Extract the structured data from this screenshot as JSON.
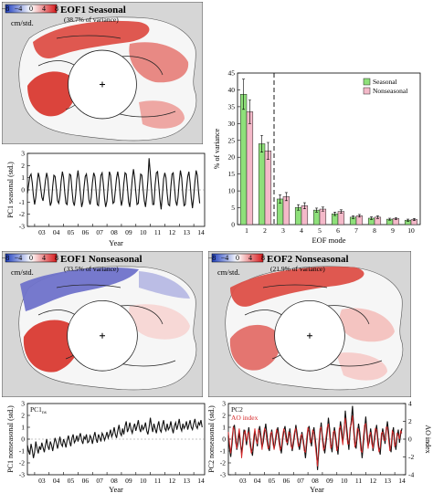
{
  "maps": [
    {
      "id": "map1",
      "title": "EOF1 Seasonal",
      "subtitle": "(38.7% of variance)",
      "unit_label": "cm/std.",
      "colorbar_ticks": [
        "−8",
        "−4",
        "0",
        "4",
        "8"
      ],
      "pattern": "seasonal"
    },
    {
      "id": "map2",
      "title": "EOF1 Nonseasonal",
      "subtitle": "(33.5% of variance)",
      "unit_label": "cm/std.",
      "colorbar_ticks": [
        "−8",
        "−4",
        "0",
        "4",
        "8"
      ],
      "pattern": "nonseasonal1"
    },
    {
      "id": "map3",
      "title": "EOF2 Nonseasonal",
      "subtitle": "(21.9% of variance)",
      "unit_label": "cm/std.",
      "colorbar_ticks": [
        "−8",
        "−4",
        "0",
        "4",
        "8"
      ],
      "pattern": "nonseasonal2"
    }
  ],
  "colors": {
    "seasonal": "#8ee07a",
    "nonseasonal": "#f4b9c9",
    "ao": "#d62728",
    "pc": "#111111",
    "land": "#d6d6d6"
  },
  "chart_data": [
    {
      "id": "pc1-seasonal",
      "type": "line",
      "title": "",
      "xlabel": "Year",
      "ylabel": "PC1 seasonal (std.)",
      "x_ticks": [
        "03",
        "04",
        "05",
        "06",
        "07",
        "08",
        "09",
        "10",
        "11",
        "12",
        "13",
        "14"
      ],
      "xlim": [
        2002.5,
        2014.75
      ],
      "ylim": [
        -3,
        3
      ],
      "y_ticks": [
        -3,
        -2,
        -1,
        0,
        1,
        2,
        3
      ],
      "series": [
        {
          "name": "",
          "start": 2002.5,
          "step": 0.0833,
          "values": [
            -0.3,
            0.4,
            1.1,
            1.3,
            0.6,
            -0.5,
            -1.2,
            -0.6,
            0.5,
            1.4,
            1.0,
            0.2,
            -0.6,
            -0.9,
            -0.1,
            0.8,
            1.4,
            0.9,
            -0.4,
            -1.3,
            -1.0,
            0.3,
            1.2,
            1.1,
            0.1,
            -0.9,
            -1.1,
            -0.5,
            0.7,
            1.5,
            1.0,
            -0.2,
            -1.1,
            -1.2,
            0.2,
            1.3,
            1.2,
            0.0,
            -1.0,
            -1.3,
            -0.4,
            0.9,
            1.6,
            0.8,
            -0.3,
            -1.4,
            -1.0,
            0.2,
            1.1,
            1.3,
            0.4,
            -0.8,
            -1.2,
            -0.6,
            0.6,
            1.4,
            1.1,
            -0.1,
            -1.2,
            -1.3,
            0.1,
            1.2,
            1.4,
            0.5,
            -0.7,
            -1.4,
            -0.9,
            0.4,
            1.5,
            1.2,
            0.0,
            -1.1,
            -1.0,
            0.0,
            1.0,
            1.5,
            0.8,
            -0.5,
            -1.3,
            -0.8,
            0.5,
            1.4,
            1.3,
            0.2,
            -1.0,
            -1.4,
            -0.3,
            0.9,
            1.7,
            1.0,
            -0.2,
            -1.2,
            -1.1,
            0.3,
            1.3,
            1.2,
            0.1,
            -0.9,
            -1.4,
            -0.5,
            0.8,
            2.6,
            1.3,
            0.0,
            -1.2,
            -1.2,
            0.4,
            1.4,
            1.5,
            0.4,
            -0.8,
            -1.6,
            -0.4,
            0.9,
            1.4,
            1.0,
            -0.3,
            -1.2,
            -1.3,
            0.2,
            1.3,
            1.4,
            0.3,
            -0.9,
            -1.3,
            -0.6,
            0.7,
            1.6,
            1.0,
            -0.4,
            -1.3,
            -1.2,
            0.1,
            1.1,
            1.5,
            0.6,
            -0.7,
            -1.5,
            -0.6,
            0.7,
            1.6,
            1.2,
            -0.1,
            -1.1
          ]
        }
      ]
    },
    {
      "id": "eof-variance",
      "type": "bar",
      "title": "",
      "xlabel": "EOF mode",
      "ylabel": "% of variance",
      "categories": [
        "1",
        "2",
        "3",
        "4",
        "5",
        "6",
        "7",
        "8",
        "9",
        "10"
      ],
      "ylim": [
        0,
        45
      ],
      "y_ticks": [
        0,
        5,
        10,
        15,
        20,
        25,
        30,
        35,
        40,
        45
      ],
      "legend_position": "top-right",
      "series": [
        {
          "name": "Seasonal",
          "values": [
            38.7,
            24.0,
            7.6,
            5.1,
            4.3,
            3.2,
            2.2,
            1.9,
            1.6,
            1.3
          ],
          "errors": [
            4.5,
            2.5,
            1.2,
            0.8,
            0.6,
            0.5,
            0.4,
            0.4,
            0.3,
            0.3
          ]
        },
        {
          "name": "Nonseasonal",
          "values": [
            33.5,
            21.9,
            8.3,
            5.6,
            4.6,
            3.9,
            2.6,
            2.2,
            1.8,
            1.5
          ],
          "errors": [
            3.5,
            2.5,
            1.2,
            0.9,
            0.6,
            0.5,
            0.4,
            0.4,
            0.3,
            0.3
          ]
        }
      ]
    },
    {
      "id": "pc1-nonseasonal",
      "type": "line",
      "title": "",
      "xlabel": "Year",
      "ylabel": "PC1 nonseasonal (std.)",
      "x_ticks": [
        "03",
        "04",
        "05",
        "06",
        "07",
        "08",
        "09",
        "10",
        "11",
        "12",
        "13",
        "14"
      ],
      "xlim": [
        2002.5,
        2014.75
      ],
      "ylim": [
        -3,
        3
      ],
      "y_ticks": [
        -3,
        -2,
        -1,
        0,
        1,
        2,
        3
      ],
      "legend_position": "top-left",
      "series": [
        {
          "name": "PC1",
          "legend_sub": "ns",
          "start": 2002.5,
          "step": 0.0833,
          "values": [
            -0.5,
            -1.0,
            -1.3,
            -0.4,
            -0.9,
            -1.6,
            -1.1,
            -0.2,
            -0.8,
            -1.2,
            -0.6,
            -0.9,
            -0.3,
            -0.7,
            -1.1,
            -0.5,
            0.0,
            -0.6,
            -0.9,
            -0.2,
            -0.5,
            -1.0,
            -0.4,
            0.1,
            -0.3,
            -0.8,
            -0.3,
            0.2,
            -0.4,
            -0.6,
            0.0,
            -0.3,
            -0.7,
            -0.1,
            0.3,
            -0.2,
            -0.6,
            0.1,
            0.4,
            -0.3,
            -0.1,
            0.3,
            -0.2,
            0.2,
            0.5,
            -0.1,
            -0.4,
            0.2,
            0.0,
            0.4,
            -0.3,
            -0.2,
            0.3,
            0.1,
            -0.4,
            0.2,
            0.6,
            0.0,
            -0.3,
            0.4,
            0.1,
            -0.2,
            0.5,
            0.3,
            -0.1,
            0.2,
            0.6,
            0.1,
            0.4,
            0.8,
            0.2,
            0.5,
            1.0,
            0.4,
            0.1,
            0.7,
            1.2,
            0.5,
            0.3,
            0.9,
            0.4,
            1.1,
            1.5,
            0.6,
            0.9,
            1.4,
            0.8,
            0.5,
            1.0,
            1.3,
            0.7,
            1.1,
            1.6,
            0.9,
            0.6,
            1.2,
            0.8,
            1.0,
            1.4,
            0.7,
            0.4,
            1.0,
            1.8,
            1.1,
            0.6,
            1.3,
            0.9,
            0.5,
            1.1,
            1.5,
            0.8,
            0.6,
            1.2,
            1.6,
            0.9,
            0.7,
            1.3,
            0.8,
            1.0,
            1.5,
            0.9,
            0.5,
            1.1,
            1.4,
            0.8,
            1.2,
            1.7,
            1.0,
            0.7,
            1.3,
            0.9,
            1.1,
            1.5,
            0.8,
            1.2,
            1.6,
            1.0,
            0.8,
            1.3,
            1.7,
            1.1,
            0.9,
            1.4,
            1.2,
            1.6,
            1.0
          ]
        }
      ]
    },
    {
      "id": "pc2-ao",
      "type": "line",
      "title": "",
      "xlabel": "Year",
      "ylabel": "PC2 nonseasonal (std.)",
      "ylabel_right": "AO index",
      "x_ticks": [
        "03",
        "04",
        "05",
        "06",
        "07",
        "08",
        "09",
        "10",
        "11",
        "12",
        "13",
        "14"
      ],
      "xlim": [
        2002.5,
        2014.75
      ],
      "ylim": [
        -3,
        3
      ],
      "y_ticks": [
        -3,
        -2,
        -1,
        0,
        1,
        2,
        3
      ],
      "y_right_ticks": [
        -4,
        -2,
        0,
        2,
        4
      ],
      "legend_position": "top-left",
      "series": [
        {
          "name": "PC2",
          "start": 2002.5,
          "step": 0.0833,
          "values": [
            0.3,
            -0.8,
            -1.5,
            -0.4,
            0.9,
            1.2,
            0.2,
            -0.9,
            -0.3,
            0.6,
            -0.4,
            -1.2,
            -0.2,
            0.8,
            0.4,
            -0.5,
            0.3,
            1.0,
            -0.1,
            -0.9,
            -1.4,
            -0.3,
            0.7,
            0.2,
            -0.6,
            0.5,
            1.1,
            0.3,
            -0.7,
            -0.2,
            0.6,
            1.3,
            0.4,
            -0.5,
            -1.0,
            0.1,
            0.8,
            0.0,
            -0.8,
            -0.3,
            0.5,
            1.0,
            0.2,
            -0.6,
            -1.2,
            -0.1,
            0.7,
            1.1,
            0.3,
            -0.5,
            0.2,
            0.9,
            -0.2,
            -1.0,
            -0.4,
            0.4,
            1.2,
            0.5,
            -0.3,
            -0.9,
            -0.2,
            0.6,
            0.0,
            -0.7,
            -1.6,
            -0.5,
            0.8,
            1.1,
            0.2,
            -0.6,
            0.4,
            1.0,
            0.1,
            -0.8,
            -2.6,
            -1.1,
            0.5,
            1.4,
            0.3,
            -0.5,
            -1.2,
            -0.3,
            0.6,
            1.8,
            0.9,
            -0.4,
            -1.1,
            0.2,
            1.0,
            0.3,
            -0.6,
            -1.3,
            0.4,
            1.5,
            0.8,
            -0.2,
            0.5,
            2.4,
            1.2,
            0.1,
            -0.9,
            0.6,
            1.6,
            2.8,
            1.1,
            -0.3,
            -0.8,
            0.4,
            1.3,
            0.6,
            -0.5,
            -1.6,
            -0.4,
            0.8,
            1.9,
            0.7,
            -0.6,
            -0.2,
            0.9,
            0.2,
            -1.0,
            -0.3,
            0.5,
            1.2,
            0.1,
            -0.8,
            -1.3,
            0.0,
            0.9,
            0.4,
            -0.4,
            0.7,
            1.5,
            0.5,
            -0.7,
            -1.1,
            0.3,
            1.0,
            -0.2,
            -0.9,
            0.2,
            0.8,
            -0.3,
            0.4,
            0.9
          ]
        },
        {
          "name": "AO index",
          "start": 2002.5,
          "step": 0.0833,
          "values": [
            0.6,
            -0.4,
            -1.2,
            0.1,
            1.0,
            0.8,
            -0.3,
            -0.8,
            0.2,
            0.9,
            -0.1,
            -1.6,
            -0.6,
            0.5,
            0.7,
            -0.2,
            0.4,
            0.6,
            -0.5,
            -1.2,
            -0.8,
            0.2,
            0.9,
            -0.1,
            -0.4,
            0.8,
            0.6,
            -0.1,
            -0.9,
            0.3,
            0.9,
            0.7,
            -0.2,
            -0.8,
            -0.6,
            0.5,
            0.6,
            -0.4,
            -0.9,
            0.1,
            0.8,
            0.6,
            -0.3,
            -0.9,
            -0.7,
            0.3,
            0.9,
            0.5,
            -0.2,
            -0.3,
            0.6,
            0.5,
            -0.6,
            -0.8,
            0.0,
            0.7,
            0.9,
            0.1,
            -0.6,
            -0.5,
            0.3,
            0.4,
            -0.3,
            -1.0,
            -1.1,
            0.1,
            1.0,
            0.6,
            -0.3,
            -0.2,
            0.8,
            0.5,
            -0.4,
            -1.4,
            -2.3,
            -0.4,
            0.9,
            1.0,
            -0.1,
            -0.9,
            -0.7,
            0.2,
            1.0,
            1.3,
            0.3,
            -0.8,
            -0.5,
            0.6,
            0.7,
            -0.1,
            -1.0,
            -0.6,
            0.9,
            1.1,
            0.2,
            -0.5,
            1.0,
            1.8,
            0.6,
            -0.4,
            -0.4,
            1.0,
            1.2,
            2.0,
            0.5,
            -0.7,
            -0.2,
            0.9,
            0.8,
            0.0,
            -1.0,
            -1.1,
            0.2,
            1.2,
            1.3,
            0.1,
            -0.8,
            0.3,
            0.6,
            -0.4,
            -0.8,
            0.1,
            0.9,
            0.8,
            -0.4,
            -1.1,
            -0.7,
            0.5,
            0.6,
            -0.1,
            -0.1,
            1.0,
            1.0,
            -0.1,
            -1.0,
            -0.5,
            0.7,
            0.5,
            -0.6,
            -0.4,
            0.5,
            0.4,
            0.0,
            0.7,
            0.5
          ]
        }
      ]
    }
  ]
}
